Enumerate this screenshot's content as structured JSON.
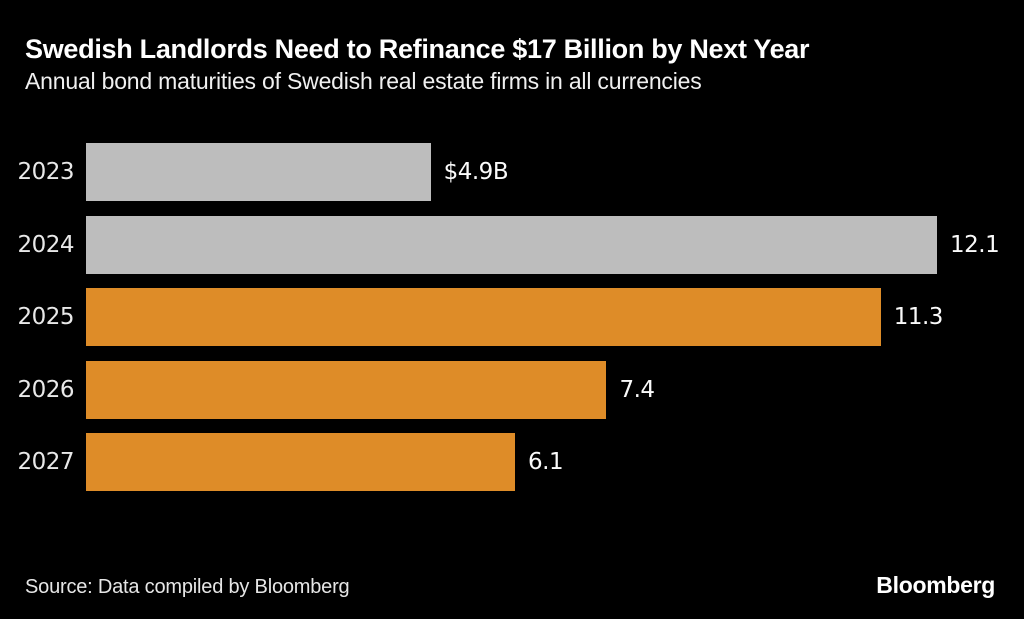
{
  "header": {
    "title": "Swedish Landlords Need to Refinance $17 Billion by Next Year",
    "subtitle": "Annual bond maturities of Swedish real estate firms in all currencies"
  },
  "footer": {
    "source": "Source: Data compiled by Bloomberg",
    "logo": "Bloomberg"
  },
  "colors": {
    "background": "#000000",
    "bar_gray": "#bdbdbd",
    "bar_orange": "#de8c28",
    "title_text": "#ffffff",
    "label_text": "#e8e8e8"
  },
  "chart_data": {
    "type": "bar",
    "orientation": "horizontal",
    "title": "Swedish Landlords Need to Refinance $17 Billion by Next Year",
    "subtitle": "Annual bond maturities of Swedish real estate firms in all currencies",
    "categories": [
      "2023",
      "2024",
      "2025",
      "2026",
      "2027"
    ],
    "values": [
      4.9,
      12.1,
      11.3,
      7.4,
      6.1
    ],
    "value_labels": [
      "$4.9B",
      "12.1",
      "11.3",
      "7.4",
      "6.1"
    ],
    "bar_colors": [
      "#bdbdbd",
      "#bdbdbd",
      "#de8c28",
      "#de8c28",
      "#de8c28"
    ],
    "unit": "$B",
    "xlim": [
      0,
      12.1
    ],
    "grid": false,
    "legend": false,
    "value_label_position": "outside-end"
  }
}
